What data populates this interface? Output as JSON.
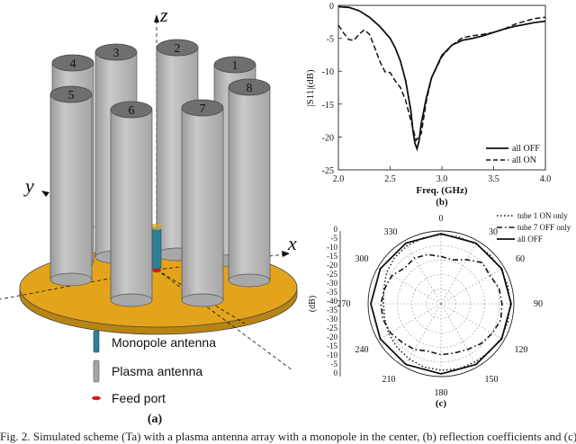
{
  "panel_a": {
    "label": "(a)",
    "axes": {
      "x": "x",
      "y": "y",
      "z": "z"
    },
    "tubes": [
      "1",
      "2",
      "3",
      "4",
      "5",
      "6",
      "7",
      "8"
    ],
    "legend": [
      "Monopole antenna",
      "Plasma antenna",
      "Feed port"
    ],
    "colors": {
      "ground": "#e3a41c",
      "tube": "#b9b9b9",
      "tube_top": "#6f6f6f",
      "monopole": "#2f7f95",
      "feed": "#d21c1c"
    }
  },
  "panel_b": {
    "label": "(b)",
    "xlabel": "Freq. (GHz)",
    "ylabel": "|S11|(dB)",
    "xticks": [
      "2.0",
      "2.5",
      "3.0",
      "3.5",
      "4.0"
    ],
    "yticks": [
      "0",
      "-5",
      "-10",
      "-15",
      "-20",
      "-25"
    ],
    "legend": [
      "all OFF",
      "all ON"
    ]
  },
  "panel_c": {
    "label": "(c)",
    "ylabel": "(dB)",
    "angle_labels": [
      "0",
      "30",
      "60",
      "90",
      "120",
      "150",
      "180",
      "210",
      "240",
      "270",
      "300",
      "330"
    ],
    "radial_labels": [
      "0",
      "-5",
      "-10",
      "-15",
      "-20",
      "-25",
      "-30",
      "-35",
      "-40",
      "-35",
      "-30",
      "-25",
      "-20",
      "-15",
      "-10",
      "-5",
      "0"
    ],
    "legend": [
      "tube 1 ON only",
      "tube 7 OFF only",
      "all OFF"
    ]
  },
  "caption": "Fig. 2. Simulated scheme (Ta) with a plasma antenna array with a monopole in the center, (b) reflection coefficients and (c) radiation patterns.",
  "chart_data": [
    {
      "type": "line",
      "title": "",
      "xlabel": "Freq. (GHz)",
      "ylabel": "|S11|(dB)",
      "xlim": [
        2.0,
        4.0
      ],
      "ylim": [
        -25,
        0
      ],
      "grid": false,
      "legend_position": "bottom-right",
      "series": [
        {
          "name": "all OFF",
          "style": "solid",
          "x": [
            2.0,
            2.1,
            2.2,
            2.3,
            2.4,
            2.5,
            2.55,
            2.6,
            2.65,
            2.7,
            2.72,
            2.74,
            2.76,
            2.78,
            2.8,
            2.85,
            2.9,
            3.0,
            3.1,
            3.2,
            3.3,
            3.4,
            3.5,
            3.6,
            3.7,
            3.8,
            3.9,
            4.0
          ],
          "y": [
            -0.2,
            -0.3,
            -0.8,
            -1.8,
            -3.2,
            -5.0,
            -6.5,
            -8.5,
            -11.5,
            -16.0,
            -19.0,
            -21.0,
            -21.8,
            -20.5,
            -18.0,
            -14.0,
            -11.0,
            -7.6,
            -6.0,
            -5.3,
            -5.0,
            -4.6,
            -4.1,
            -3.6,
            -3.2,
            -2.9,
            -2.6,
            -2.4
          ]
        },
        {
          "name": "all ON",
          "style": "dashed",
          "x": [
            2.0,
            2.05,
            2.1,
            2.15,
            2.2,
            2.25,
            2.3,
            2.35,
            2.4,
            2.45,
            2.5,
            2.55,
            2.6,
            2.65,
            2.7,
            2.75,
            2.8,
            2.85,
            2.9,
            3.0,
            3.1,
            3.2,
            3.3,
            3.4,
            3.5,
            3.6,
            3.7,
            3.8,
            3.9,
            4.0
          ],
          "y": [
            -3.0,
            -4.2,
            -5.2,
            -5.3,
            -4.4,
            -3.7,
            -4.4,
            -6.4,
            -8.5,
            -10.1,
            -10.2,
            -11.5,
            -12.5,
            -14.5,
            -17.5,
            -20.5,
            -19.5,
            -14.5,
            -11.0,
            -7.8,
            -6.0,
            -4.9,
            -4.6,
            -4.4,
            -4.1,
            -3.6,
            -2.9,
            -2.4,
            -2.0,
            -1.8
          ]
        }
      ]
    },
    {
      "type": "polar",
      "title": "",
      "ylabel": "(dB)",
      "rlim": [
        -40,
        0
      ],
      "grid": true,
      "legend_position": "top-right",
      "series": [
        {
          "name": "tube 1 ON only",
          "style": "dotted",
          "theta": [
            0,
            15,
            30,
            45,
            60,
            75,
            90,
            105,
            120,
            135,
            150,
            165,
            180,
            195,
            210,
            225,
            240,
            255,
            270,
            285,
            300,
            315,
            330,
            345
          ],
          "r": [
            -2,
            -2,
            -2,
            -2,
            -2,
            -2,
            -2,
            -2,
            -2,
            -2.5,
            -3,
            -3,
            -3.5,
            -4,
            -5,
            -6,
            -7,
            -8,
            -8.5,
            -7.5,
            -5.5,
            -4,
            -3,
            -2.5
          ]
        },
        {
          "name": "tube 7 OFF only",
          "style": "dash-dot",
          "theta": [
            0,
            15,
            30,
            45,
            60,
            75,
            90,
            105,
            120,
            135,
            150,
            165,
            180,
            195,
            210,
            225,
            240,
            255,
            270,
            285,
            300,
            315,
            330,
            345
          ],
          "r": [
            -14,
            -15,
            -12,
            -8,
            -9,
            -7,
            -6.5,
            -6,
            -7.5,
            -9,
            -11,
            -12,
            -12,
            -13,
            -11,
            -10,
            -8,
            -7,
            -7,
            -8,
            -9,
            -12,
            -11,
            -12
          ]
        },
        {
          "name": "all OFF",
          "style": "solid",
          "theta": [
            0,
            30,
            60,
            90,
            120,
            150,
            180,
            210,
            240,
            270,
            300,
            330
          ],
          "r": [
            -1.5,
            -1.5,
            -1.5,
            -1.5,
            -1.5,
            -1.5,
            -1.5,
            -1.5,
            -1.5,
            -1.5,
            -1.5,
            -1.5
          ]
        }
      ]
    }
  ]
}
